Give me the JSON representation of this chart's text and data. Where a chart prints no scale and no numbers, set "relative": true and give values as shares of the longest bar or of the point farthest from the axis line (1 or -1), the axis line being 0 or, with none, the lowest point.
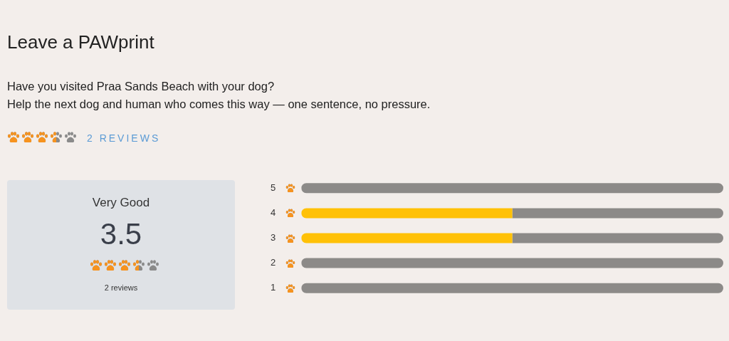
{
  "chart_data": {
    "type": "bar",
    "title": "Leave a PAWprint",
    "subtitle": "Have you visited Praa Sands Beach with your dog?\nHelp the next dog and human who comes this way — one sentence, no pressure.",
    "annotations": [
      "2 REVIEWS",
      "Very Good",
      "3.5",
      "2 reviews"
    ],
    "categories": [
      "5",
      "4",
      "3",
      "2",
      "1"
    ],
    "orientation": "horizontal",
    "stacked": true,
    "relative": true,
    "legend": false,
    "series": [
      {
        "color": "#ffc107",
        "values": [
          0,
          0.5,
          0.5,
          0,
          0
        ]
      },
      {
        "color": "#8c8a88",
        "values": [
          1,
          0.5,
          0.5,
          1,
          1
        ]
      }
    ]
  }
}
